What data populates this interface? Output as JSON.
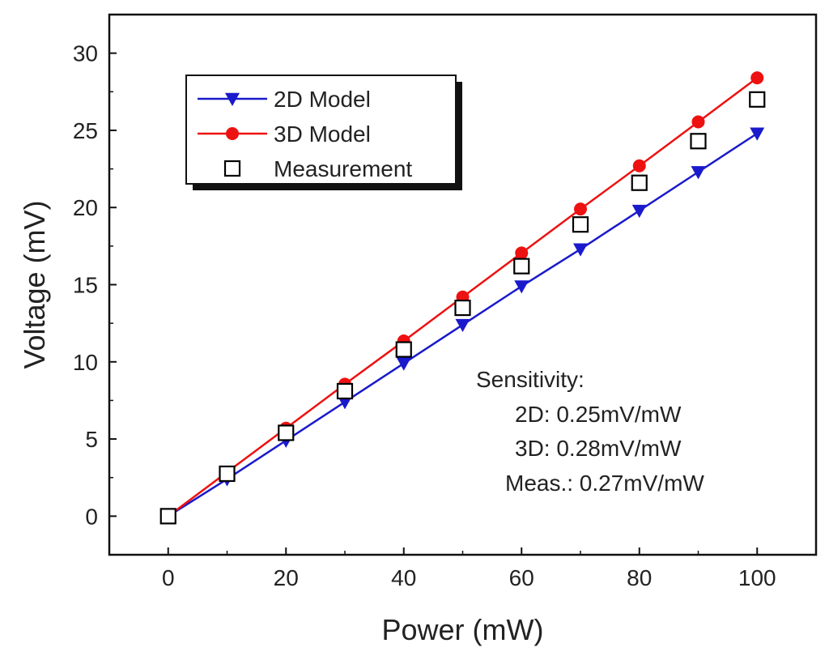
{
  "chart_data": {
    "type": "line",
    "title": "",
    "xlabel": "Power (mW)",
    "ylabel": "Voltage (mV)",
    "xlim": [
      -10,
      110
    ],
    "ylim": [
      -2.5,
      32.5
    ],
    "xticks": [
      0,
      20,
      40,
      60,
      80,
      100
    ],
    "yticks": [
      0,
      5,
      10,
      15,
      20,
      25,
      30
    ],
    "x": [
      0,
      10,
      20,
      30,
      40,
      50,
      60,
      70,
      80,
      90,
      100
    ],
    "series": [
      {
        "name": "2D Model",
        "color": "#1a1acc",
        "marker": "triangle-down",
        "line": true,
        "values": [
          0,
          2.4,
          4.9,
          7.4,
          9.9,
          12.4,
          14.9,
          17.3,
          19.8,
          22.3,
          24.8
        ]
      },
      {
        "name": "3D Model",
        "color": "#ee1111",
        "marker": "circle",
        "line": true,
        "values": [
          0,
          2.85,
          5.7,
          8.55,
          11.35,
          14.2,
          17.05,
          19.9,
          22.7,
          25.55,
          28.4
        ]
      },
      {
        "name": "Measurement",
        "color": "#000000",
        "marker": "open-square",
        "line": false,
        "values": [
          0,
          2.75,
          5.4,
          8.1,
          10.8,
          13.5,
          16.2,
          18.9,
          21.6,
          24.3,
          27.0
        ]
      }
    ],
    "legend_position": "top-left",
    "grid": false,
    "annotation": {
      "heading": "Sensitivity:",
      "lines": [
        "2D: 0.25mV/mW",
        "3D: 0.28mV/mW",
        "Meas.: 0.27mV/mW"
      ]
    }
  }
}
